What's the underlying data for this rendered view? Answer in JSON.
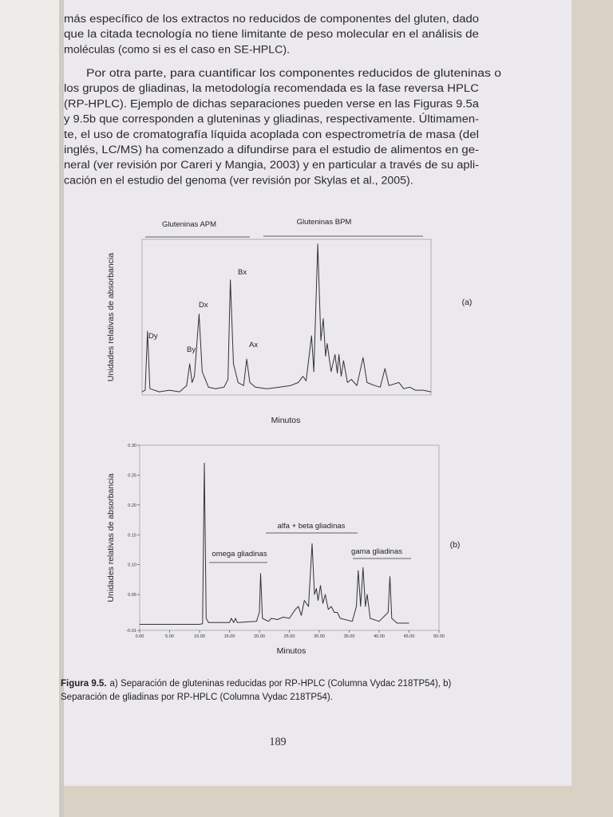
{
  "page": {
    "paragraphs": [
      [
        "más específico de los extractos no reducidos de componentes del gluten, dado",
        "que la citada tecnología no tiene limitante de peso molecular en el análisis de",
        "moléculas (como si es el caso en SE-HPLC)."
      ],
      [
        "Por otra parte, para cuantificar los componentes reducidos de gluteninas o",
        "los grupos de gliadinas, la metodología recomendada es la fase reversa HPLC",
        "(RP-HPLC). Ejemplo de dichas separaciones pueden verse en las Figuras 9.5a",
        "y 9.5b que corresponden a gluteninas y gliadinas, respectivamente. Últimamen-",
        "te, el uso de cromatografía líquida acoplada con espectrometría de masa (del",
        "inglés, LC/MS) ha comenzado a difundirse para el estudio de alimentos en ge-",
        "neral (ver revisión por Careri y Mangia, 2003) y en particular a través de su apli-",
        "cación en el estudio del genoma (ver revisión por Skylas et al., 2005)."
      ]
    ],
    "caption": {
      "label": "Figura 9.5.",
      "lines": [
        "a) Separación de gluteninas reducidas por RP-HPLC (Columna Vydac 218TP54), b)",
        "Separación de gliadinas por RP-HPLC (Columna Vydac 218TP54)."
      ]
    },
    "page_number": "189"
  },
  "chart_data": [
    {
      "type": "line",
      "panel": "(a)",
      "xlabel": "Minutos",
      "ylabel": "Unidades relativas de absorbancia",
      "color": "#333333",
      "xlim": [
        15,
        52
      ],
      "ylim": [
        0,
        1
      ],
      "x": [
        15.0,
        15.4,
        15.7,
        16.0,
        17.2,
        18.5,
        19.8,
        20.7,
        21.1,
        21.4,
        21.7,
        22.3,
        22.7,
        23.5,
        24.4,
        25.5,
        26.0,
        26.3,
        26.7,
        27.3,
        28.0,
        28.4,
        28.8,
        29.5,
        31.0,
        32.6,
        34.0,
        35.0,
        35.6,
        36.0,
        36.7,
        37.0,
        37.5,
        37.9,
        38.2,
        38.5,
        38.7,
        39.2,
        39.7,
        40.0,
        40.2,
        40.5,
        40.8,
        41.3,
        41.8,
        42.5,
        43.3,
        43.8,
        44.8,
        45.5,
        46.1,
        46.6,
        47.9,
        48.5,
        49.3,
        50.0,
        51.0,
        52.0
      ],
      "values": [
        0.02,
        0.03,
        0.41,
        0.04,
        0.02,
        0.03,
        0.02,
        0.06,
        0.2,
        0.08,
        0.12,
        0.52,
        0.15,
        0.05,
        0.04,
        0.05,
        0.1,
        0.74,
        0.2,
        0.08,
        0.06,
        0.23,
        0.08,
        0.05,
        0.04,
        0.05,
        0.06,
        0.08,
        0.12,
        0.09,
        0.38,
        0.15,
        0.97,
        0.35,
        0.49,
        0.25,
        0.33,
        0.15,
        0.26,
        0.14,
        0.26,
        0.12,
        0.22,
        0.08,
        0.1,
        0.06,
        0.24,
        0.08,
        0.06,
        0.05,
        0.17,
        0.06,
        0.08,
        0.04,
        0.05,
        0.03,
        0.03,
        0.02
      ],
      "annotations": [
        "Dy",
        "By",
        "Dx",
        "Bx",
        "Ax"
      ],
      "groups": [
        "Gluteninas APM",
        "Gluteninas BPM"
      ]
    },
    {
      "type": "line",
      "panel": "(b)",
      "xlabel": "Minutos",
      "ylabel": "Unidades relativas de absorbancia",
      "color": "#333333",
      "xlim": [
        0,
        50
      ],
      "ylim": [
        -0.01,
        0.3
      ],
      "xticks": [
        {
          "value": 0,
          "label": "0.00"
        },
        {
          "value": 5,
          "label": "5.00"
        },
        {
          "value": 10,
          "label": "10.00"
        },
        {
          "value": 15,
          "label": "15.00"
        },
        {
          "value": 20,
          "label": "20.00"
        },
        {
          "value": 25,
          "label": "25.00"
        },
        {
          "value": 30,
          "label": "30.00"
        },
        {
          "value": 35,
          "label": "35.00"
        },
        {
          "value": 40,
          "label": "40.00"
        },
        {
          "value": 45,
          "label": "45.00"
        },
        {
          "value": 50,
          "label": "50.00"
        }
      ],
      "yticks": [
        -0.01,
        0.05,
        {
          "value": 0.1,
          "label": "0.10"
        },
        0.15,
        {
          "value": 0.2,
          "label": "0.20"
        },
        0.25,
        {
          "value": 0.3,
          "label": "0.30"
        }
      ],
      "x": [
        0,
        5,
        10,
        10.5,
        10.8,
        11.1,
        11.5,
        15.0,
        15.3,
        15.7,
        16.0,
        16.3,
        19.5,
        20.0,
        20.2,
        20.5,
        21.5,
        22.0,
        23.0,
        24.0,
        25.0,
        26.0,
        26.5,
        27.0,
        27.5,
        28.2,
        28.8,
        29.2,
        29.5,
        29.8,
        30.2,
        30.6,
        31.0,
        31.5,
        32.0,
        32.5,
        33.0,
        33.5,
        35.5,
        36.2,
        36.5,
        36.9,
        37.3,
        37.7,
        38.0,
        38.5,
        40.0,
        41.5,
        41.8,
        42.1,
        43.0,
        45.0
      ],
      "values": [
        0,
        0,
        0,
        0.001,
        0.27,
        0.01,
        0.003,
        0.003,
        0.01,
        0.003,
        0.01,
        0.003,
        0.005,
        0.02,
        0.085,
        0.01,
        0.005,
        0.01,
        0.008,
        0.012,
        0.01,
        0.025,
        0.03,
        0.015,
        0.04,
        0.03,
        0.135,
        0.05,
        0.06,
        0.04,
        0.065,
        0.035,
        0.05,
        0.025,
        0.03,
        0.02,
        0.02,
        0.01,
        0.005,
        0.03,
        0.09,
        0.03,
        0.095,
        0.03,
        0.05,
        0.01,
        0.005,
        0.02,
        0.08,
        0.01,
        0.002,
        0.002
      ],
      "groups": [
        "omega gliadinas",
        "alfa + beta gliadinas",
        "gama gliadinas"
      ]
    }
  ]
}
